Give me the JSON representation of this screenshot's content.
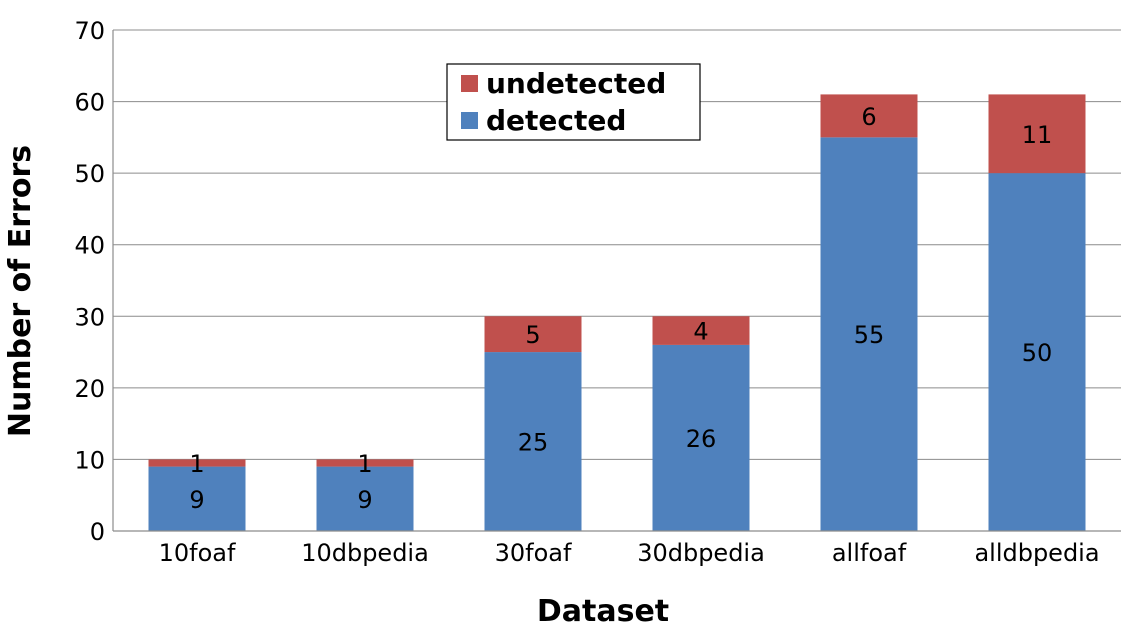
{
  "chart_data": {
    "type": "bar",
    "stacked": true,
    "categories": [
      "10foaf",
      "10dbpedia",
      "30foaf",
      "30dbpedia",
      "allfoaf",
      "alldbpedia"
    ],
    "series": [
      {
        "name": "detected",
        "values": [
          9,
          9,
          25,
          26,
          55,
          50
        ],
        "color": "#4F81BD"
      },
      {
        "name": "undetected",
        "values": [
          1,
          1,
          5,
          4,
          6,
          11
        ],
        "color": "#C0504D"
      }
    ],
    "xlabel": "Dataset",
    "ylabel": "Number of Errors",
    "ylim": [
      0,
      70
    ],
    "yticks": [
      0,
      10,
      20,
      30,
      40,
      50,
      60,
      70
    ],
    "grid": true,
    "legend": {
      "placement": "top-center",
      "order": [
        "undetected",
        "detected"
      ]
    }
  }
}
